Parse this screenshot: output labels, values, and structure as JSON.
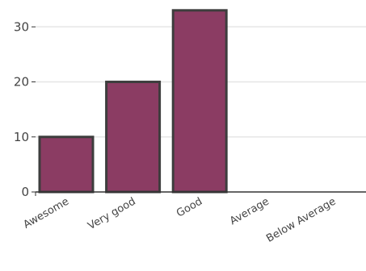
{
  "colors": {
    "bar_fill": "#8b3c63",
    "bar_stroke": "#3d3d3d",
    "grid": "#e6e6e6",
    "axis": "#333333",
    "text": "#444444"
  },
  "chart_data": {
    "type": "bar",
    "categories": [
      "Awesome",
      "Very good",
      "Good",
      "Average",
      "Below Average"
    ],
    "values": [
      10,
      20,
      33,
      0,
      0
    ],
    "yticks": [
      0,
      10,
      20,
      30
    ],
    "ylim": [
      0,
      34
    ],
    "title": "",
    "xlabel": "",
    "ylabel": "",
    "grid": true,
    "legend": "none"
  }
}
